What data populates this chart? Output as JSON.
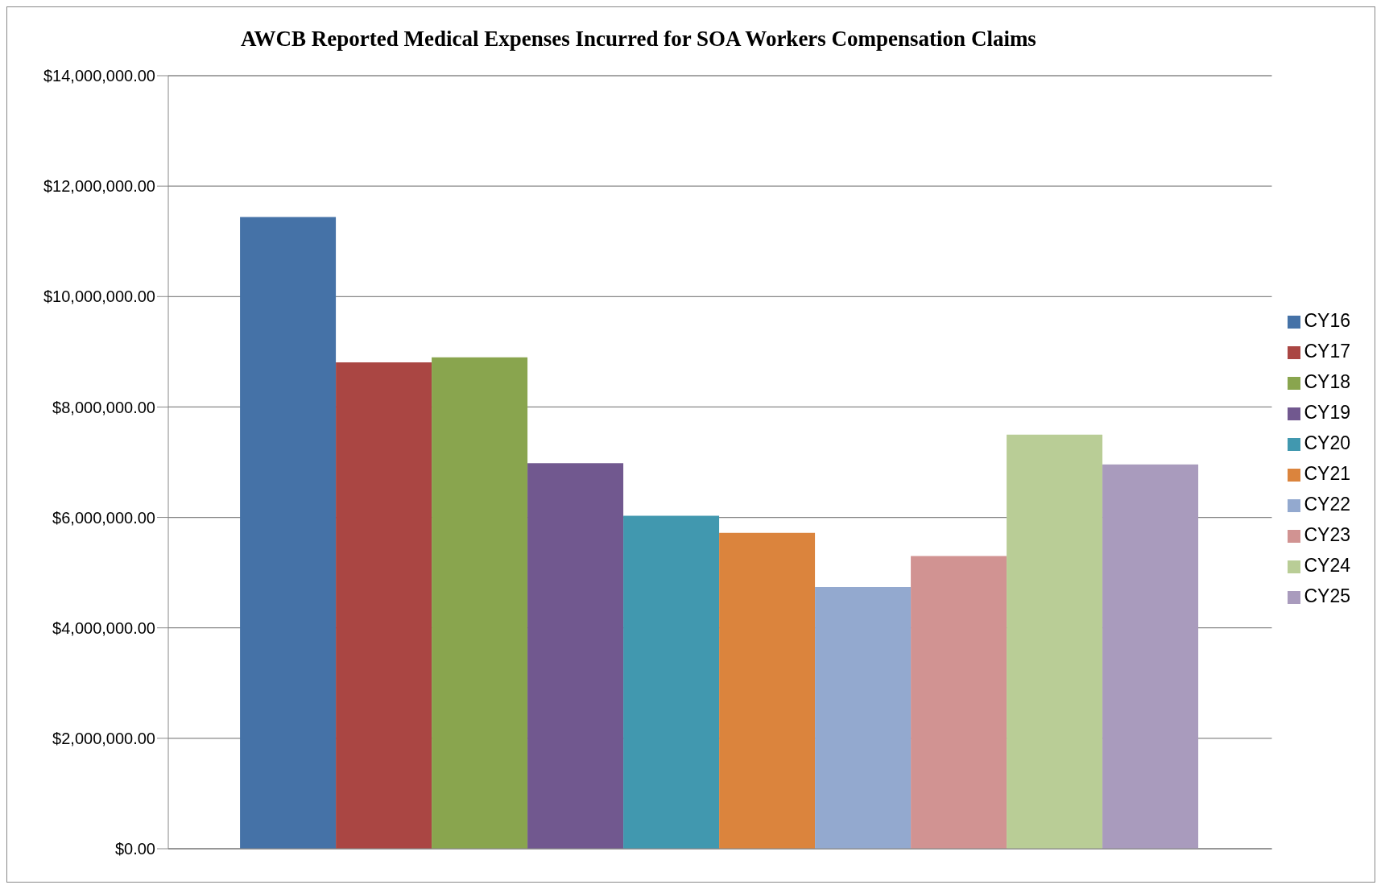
{
  "chart_data": {
    "type": "bar",
    "title": "AWCB Reported Medical Expenses Incurred for SOA Workers Compensation Claims",
    "categories": [
      null
    ],
    "series": [
      {
        "name": "CY16",
        "color": "#4572a7",
        "values": [
          11440000
        ]
      },
      {
        "name": "CY17",
        "color": "#aa4643",
        "values": [
          8810000
        ]
      },
      {
        "name": "CY18",
        "color": "#89a54e",
        "values": [
          8900000
        ]
      },
      {
        "name": "CY19",
        "color": "#71588f",
        "values": [
          6980000
        ]
      },
      {
        "name": "CY20",
        "color": "#4198af",
        "values": [
          6030000
        ]
      },
      {
        "name": "CY21",
        "color": "#db843d",
        "values": [
          5720000
        ]
      },
      {
        "name": "CY22",
        "color": "#93a9cf",
        "values": [
          4740000
        ]
      },
      {
        "name": "CY23",
        "color": "#d19392",
        "values": [
          5300000
        ]
      },
      {
        "name": "CY24",
        "color": "#b9cd96",
        "values": [
          7500000
        ]
      },
      {
        "name": "CY25",
        "color": "#a99bbd",
        "values": [
          6960000
        ]
      }
    ],
    "ylim": [
      0,
      14000000
    ],
    "yticks": [
      {
        "value": 0,
        "label": "$0.00"
      },
      {
        "value": 2000000,
        "label": "$2,000,000.00"
      },
      {
        "value": 4000000,
        "label": "$4,000,000.00"
      },
      {
        "value": 6000000,
        "label": "$6,000,000.00"
      },
      {
        "value": 8000000,
        "label": "$8,000,000.00"
      },
      {
        "value": 10000000,
        "label": "$10,000,000.00"
      },
      {
        "value": 12000000,
        "label": "$12,000,000.00"
      },
      {
        "value": 14000000,
        "label": "$14,000,000.00"
      }
    ],
    "grid": "y",
    "legend": "right",
    "tick_labels": "y"
  }
}
